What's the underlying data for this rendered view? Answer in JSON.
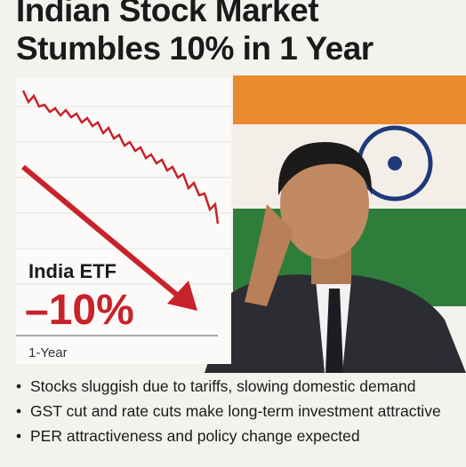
{
  "header": {
    "title_line1": "Indian Stock Market",
    "title_line2": "Stumbles 10% in 1 Year"
  },
  "panel": {
    "label": "India ETF",
    "change": "–10%",
    "period": "1-Year"
  },
  "bullets": [
    "Stocks sluggish due to tariffs, slowing domestic demand",
    "GST cut and rate cuts make long-term investment attractive",
    "PER attractiveness and policy change expected"
  ]
}
